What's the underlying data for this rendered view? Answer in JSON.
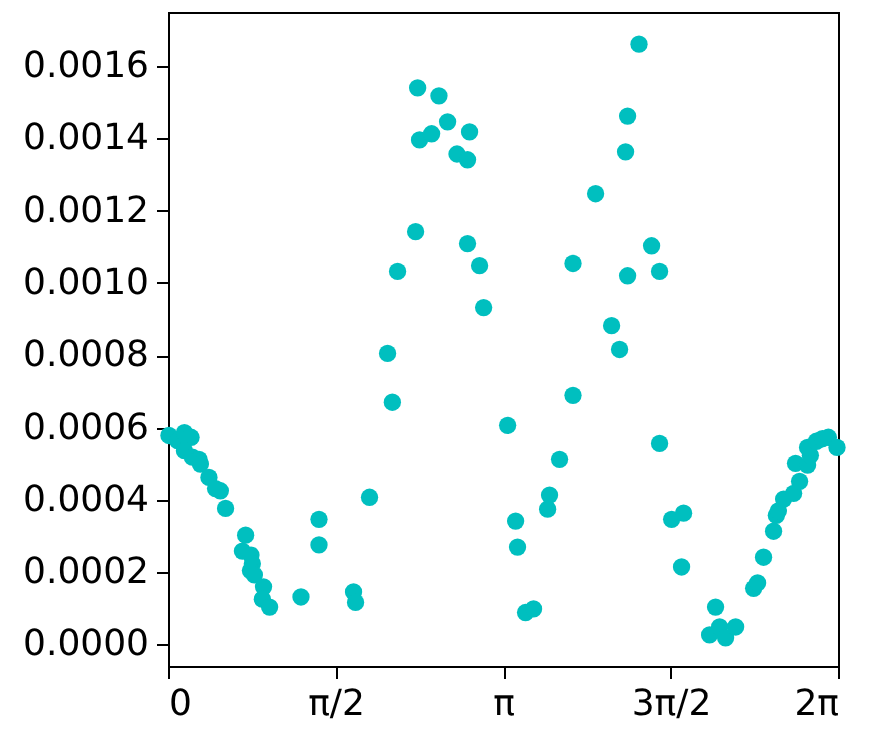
{
  "chart_data": {
    "type": "scatter",
    "x": [
      0.009,
      0.09,
      0.154,
      0.216,
      0.154,
      0.229,
      0.291,
      0.304,
      0.384,
      0.446,
      0.491,
      0.54,
      0.728,
      0.698,
      0.778,
      0.791,
      0.773,
      0.81,
      0.896,
      0.885,
      0.953,
      1.247,
      1.416,
      1.416,
      1.74,
      1.759,
      1.89,
      2.104,
      2.059,
      2.153,
      2.322,
      2.341,
      2.359,
      2.472,
      2.541,
      2.622,
      2.71,
      2.809,
      2.828,
      2.809,
      2.922,
      2.96,
      3.185,
      3.26,
      3.278,
      3.353,
      3.428,
      3.56,
      3.578,
      3.672,
      3.798,
      3.798,
      4.01,
      4.16,
      4.235,
      4.291,
      4.31,
      4.31,
      4.417,
      4.535,
      4.61,
      4.61,
      4.723,
      4.835,
      4.816,
      5.135,
      5.079,
      5.173,
      5.229,
      5.323,
      5.492,
      5.529,
      5.585,
      5.679,
      5.705,
      5.724,
      5.773,
      5.867,
      5.923,
      5.885,
      5.998,
      6.024,
      5.998,
      6.08,
      6.137,
      6.193,
      6.274
    ],
    "series": [
      {
        "color": "#00bfbf",
        "values": [
          0.000578,
          0.000564,
          0.000586,
          0.000573,
          0.000536,
          0.000518,
          0.000512,
          0.000499,
          0.000462,
          0.000431,
          0.000425,
          0.000376,
          0.000302,
          0.000258,
          0.000247,
          0.000223,
          0.000204,
          0.000192,
          0.000159,
          0.000125,
          0.000103,
          0.000131,
          0.000346,
          0.000275,
          0.000145,
          0.000116,
          0.000407,
          0.00067,
          0.000805,
          0.001032,
          0.001142,
          0.00154,
          0.001396,
          0.001413,
          0.001518,
          0.001446,
          0.001357,
          0.001341,
          0.001418,
          0.001109,
          0.001048,
          0.000932,
          0.000606,
          0.000341,
          0.000269,
          8.8e-05,
          9.8e-05,
          0.000374,
          0.000413,
          0.000512,
          0.000689,
          0.001054,
          0.001247,
          0.000882,
          0.000816,
          0.001363,
          0.001462,
          0.00102,
          0.001661,
          0.001103,
          0.001032,
          0.000556,
          0.000346,
          0.000363,
          0.000214,
          0.000103,
          2.6e-05,
          4.8e-05,
          1.8e-05,
          4.8e-05,
          0.000155,
          0.00017,
          0.000241,
          0.000313,
          0.000357,
          0.000369,
          0.000402,
          0.000418,
          0.000451,
          0.000501,
          0.000496,
          0.000523,
          0.000545,
          0.000562,
          0.000569,
          0.000573,
          0.000545
        ]
      }
    ],
    "xlim": [
      0,
      6.2832
    ],
    "xticks": [
      {
        "value": 0,
        "label": "0"
      },
      {
        "value": 1.5708,
        "label": "π/2"
      },
      {
        "value": 3.1416,
        "label": "π"
      },
      {
        "value": 4.7124,
        "label": "3π/2"
      },
      {
        "value": 6.2832,
        "label": "2π"
      }
    ],
    "ylim": [
      -6e-05,
      0.00175
    ],
    "yticks": [
      {
        "value": 0,
        "label": "0.0000"
      },
      {
        "value": 0.0002,
        "label": "0.0002"
      },
      {
        "value": 0.0004,
        "label": "0.0004"
      },
      {
        "value": 0.0006,
        "label": "0.0006"
      },
      {
        "value": 0.0008,
        "label": "0.0008"
      },
      {
        "value": 0.001,
        "label": "0.0010"
      },
      {
        "value": 0.0012,
        "label": "0.0012"
      },
      {
        "value": 0.0014,
        "label": "0.0014"
      },
      {
        "value": 0.0016,
        "label": "0.0016"
      }
    ],
    "marker": "circle",
    "grid": false,
    "legend": false
  }
}
